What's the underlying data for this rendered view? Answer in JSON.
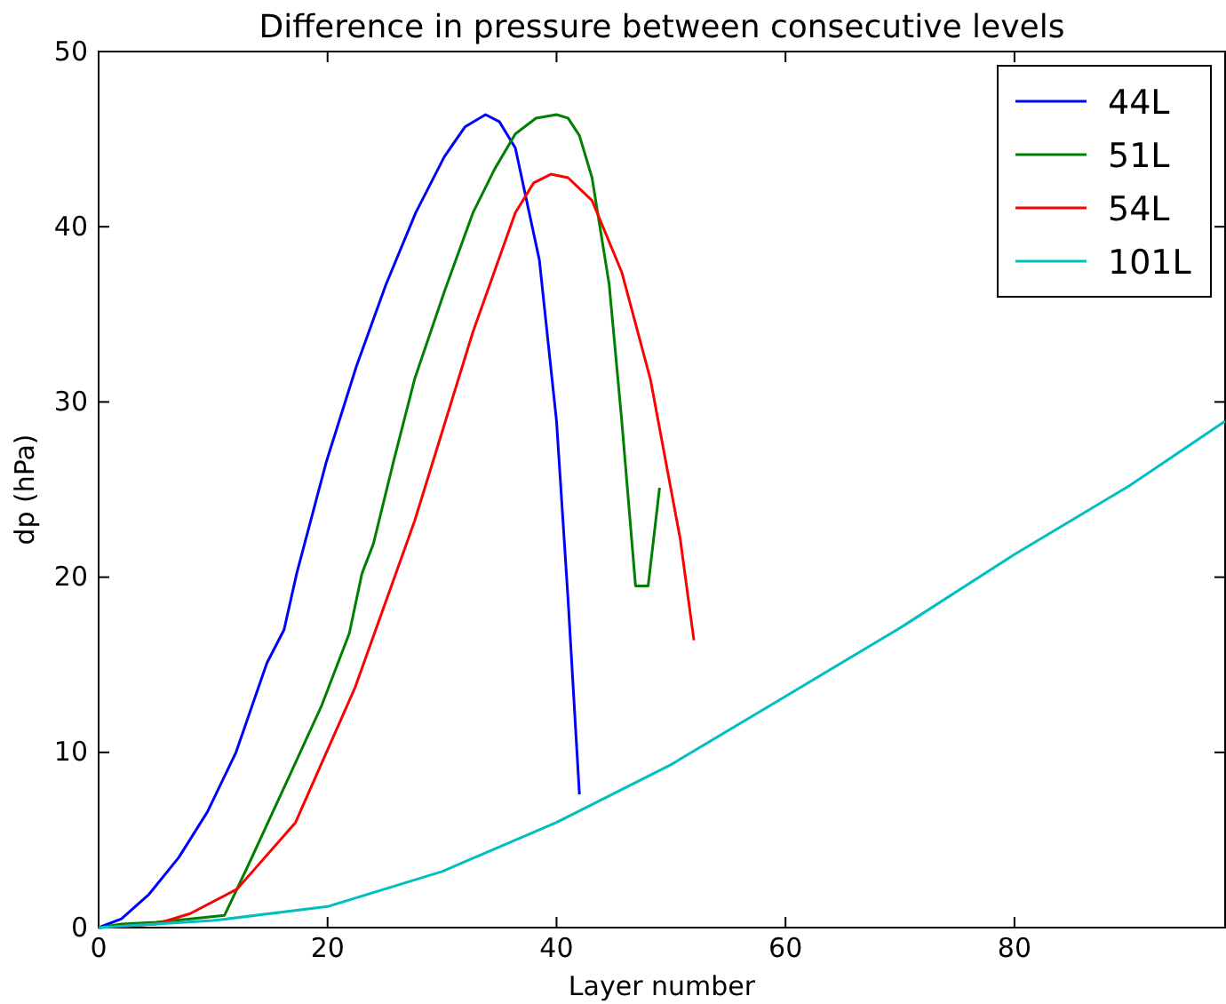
{
  "chart_data": {
    "type": "line",
    "title": "Difference in pressure between consecutive levels",
    "xlabel": "Layer number",
    "ylabel": "dp (hPa)",
    "xlim": [
      0,
      98.4
    ],
    "xticks": [
      0,
      20,
      40,
      60,
      80
    ],
    "ylim": [
      0,
      50
    ],
    "yticks": [
      0,
      10,
      20,
      30,
      40,
      50
    ],
    "grid": false,
    "legend": "top right",
    "marker": "none",
    "line_style": "solid",
    "series": [
      {
        "name": "44L",
        "color": "#0000ff",
        "x": [
          0,
          2,
          4.4,
          7,
          9.5,
          12,
          14.7,
          16.2,
          17.3,
          19.9,
          22.5,
          25.1,
          27.7,
          30.2,
          32,
          33.8,
          35,
          36.4,
          38.5,
          40,
          41,
          42
        ],
        "values": [
          0,
          0.5,
          1.9,
          4,
          6.6,
          10,
          15.1,
          17,
          20.2,
          26.6,
          32,
          36.7,
          40.8,
          44,
          45.7,
          46.4,
          46,
          44.5,
          38.1,
          28.9,
          18.8,
          7.6
        ]
      },
      {
        "name": "51L",
        "color": "#008000",
        "x": [
          0,
          2,
          5,
          8,
          11,
          13.1,
          16.7,
          19.5,
          21.9,
          23,
          24,
          25.8,
          27.6,
          30.2,
          32.7,
          34.6,
          36.4,
          38.2,
          40,
          41,
          42,
          43.1,
          44.6,
          45.7,
          46.9,
          48,
          49
        ],
        "values": [
          0,
          0.2,
          0.3,
          0.5,
          0.7,
          3.6,
          8.7,
          12.7,
          16.8,
          20.2,
          21.9,
          26.7,
          31.3,
          36.3,
          40.8,
          43.3,
          45.3,
          46.2,
          46.4,
          46.2,
          45.2,
          42.8,
          36.7,
          28.9,
          19.5,
          19.5,
          25.1
        ]
      },
      {
        "name": "54L",
        "color": "#ff0000",
        "x": [
          0,
          5,
          8,
          12.1,
          17.2,
          22.4,
          27.6,
          32.7,
          36.4,
          38,
          39.5,
          41,
          43.1,
          45.7,
          48.2,
          50.8,
          52
        ],
        "values": [
          0,
          0.2,
          0.8,
          2.2,
          6,
          13.7,
          23.2,
          34,
          40.8,
          42.5,
          43,
          42.8,
          41.5,
          37.4,
          31.3,
          22.2,
          16.4
        ]
      },
      {
        "name": "101L",
        "color": "#00bfbf",
        "x": [
          0,
          10,
          20,
          30,
          40,
          50,
          60,
          70,
          80,
          90,
          98.4
        ],
        "values": [
          0,
          0.4,
          1.2,
          3.2,
          6,
          9.3,
          13.2,
          17.1,
          21.3,
          25.2,
          28.9
        ]
      }
    ]
  }
}
